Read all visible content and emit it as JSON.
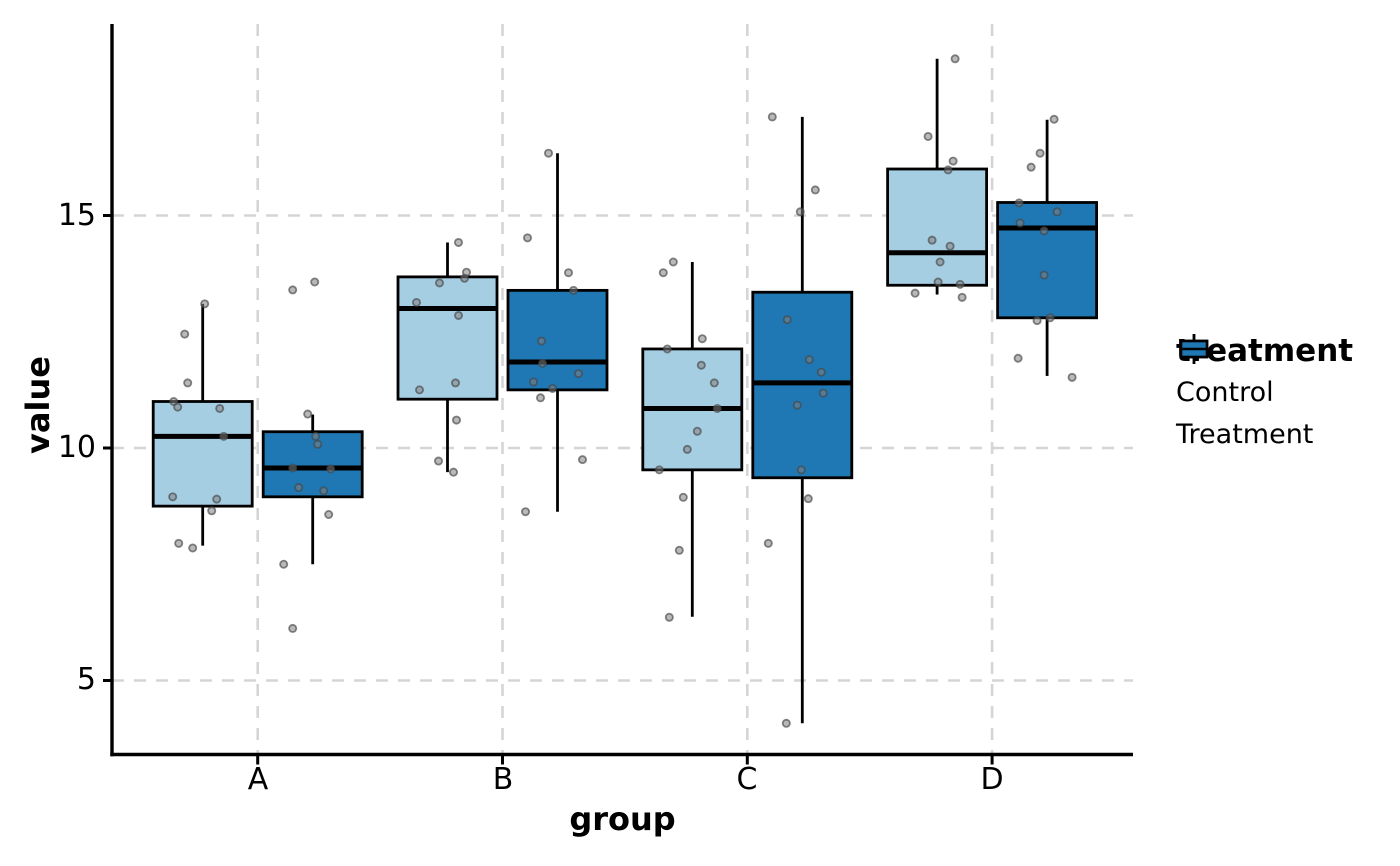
{
  "chart_data": {
    "type": "box",
    "title": "",
    "xlabel": "group",
    "ylabel": "value",
    "categories": [
      "A",
      "B",
      "C",
      "D"
    ],
    "y_ticks": [
      5,
      10,
      15
    ],
    "y_tick_labels": [
      "5",
      "10",
      "15"
    ],
    "ylim": [
      3.4,
      19.1
    ],
    "grid": "dashed",
    "grid_color": "#d5d5d5",
    "point_color": "#808080",
    "point_stroke_color": "#454545",
    "legend": {
      "title": "treatment",
      "position": "right",
      "entries": [
        {
          "label": "Control",
          "color": "#A6CEE3"
        },
        {
          "label": "Treatment",
          "color": "#1F78B4"
        }
      ]
    },
    "series": [
      {
        "name": "Control",
        "color": "#A6CEE3",
        "boxes": [
          {
            "group": "A",
            "whisker_low": 7.9,
            "q1": 8.75,
            "median": 10.25,
            "q3": 11.0,
            "whisker_high": 13.1,
            "points": [
              [
                2,
                13.1
              ],
              [
                -18,
                12.45
              ],
              [
                -15,
                11.4
              ],
              [
                -29,
                11.0
              ],
              [
                -25,
                10.88
              ],
              [
                17,
                10.85
              ],
              [
                21,
                10.25
              ],
              [
                -30,
                8.95
              ],
              [
                14,
                8.9
              ],
              [
                9,
                8.65
              ],
              [
                -24,
                7.95
              ],
              [
                -10,
                7.85
              ]
            ]
          },
          {
            "group": "B",
            "whisker_low": 9.48,
            "q1": 11.05,
            "median": 13.0,
            "q3": 13.68,
            "whisker_high": 14.42,
            "points": [
              [
                11,
                14.42
              ],
              [
                19,
                13.78
              ],
              [
                17,
                13.65
              ],
              [
                -8,
                13.55
              ],
              [
                -31,
                13.13
              ],
              [
                11,
                12.85
              ],
              [
                8,
                11.4
              ],
              [
                -28,
                11.25
              ],
              [
                9,
                10.6
              ],
              [
                -9,
                9.72
              ],
              [
                6,
                9.48
              ]
            ]
          },
          {
            "group": "C",
            "whisker_low": 6.37,
            "q1": 9.53,
            "median": 10.85,
            "q3": 12.13,
            "whisker_high": 14.0,
            "points": [
              [
                -19,
                14.0
              ],
              [
                -29,
                13.77
              ],
              [
                10,
                12.35
              ],
              [
                -25,
                12.13
              ],
              [
                9,
                11.78
              ],
              [
                22,
                11.4
              ],
              [
                25,
                10.85
              ],
              [
                5,
                10.36
              ],
              [
                -5,
                9.97
              ],
              [
                -33,
                9.53
              ],
              [
                -9,
                8.94
              ],
              [
                -13,
                7.8
              ],
              [
                -23,
                6.36
              ]
            ]
          },
          {
            "group": "D",
            "whisker_low": 13.3,
            "q1": 13.5,
            "median": 14.2,
            "q3": 16.0,
            "whisker_high": 18.37,
            "points": [
              [
                18,
                18.37
              ],
              [
                -9,
                16.7
              ],
              [
                16,
                16.17
              ],
              [
                11,
                15.98
              ],
              [
                -5,
                14.47
              ],
              [
                13,
                14.34
              ],
              [
                3,
                14.0
              ],
              [
                1,
                13.57
              ],
              [
                23,
                13.52
              ],
              [
                -22,
                13.33
              ],
              [
                25,
                13.24
              ]
            ]
          }
        ]
      },
      {
        "name": "Treatment",
        "color": "#1F78B4",
        "boxes": [
          {
            "group": "A",
            "whisker_low": 7.5,
            "q1": 8.95,
            "median": 9.57,
            "q3": 10.35,
            "whisker_high": 10.72,
            "points": [
              [
                2,
                13.57
              ],
              [
                -20,
                13.4
              ],
              [
                -5,
                10.73
              ],
              [
                3,
                10.25
              ],
              [
                5,
                10.08
              ],
              [
                -20,
                9.57
              ],
              [
                18,
                9.55
              ],
              [
                -14,
                9.15
              ],
              [
                11,
                9.08
              ],
              [
                16,
                8.57
              ],
              [
                -29,
                7.5
              ],
              [
                -20,
                6.12
              ]
            ]
          },
          {
            "group": "B",
            "whisker_low": 8.63,
            "q1": 11.25,
            "median": 11.85,
            "q3": 13.39,
            "whisker_high": 16.34,
            "points": [
              [
                -9,
                16.34
              ],
              [
                -30,
                14.52
              ],
              [
                11,
                13.77
              ],
              [
                16,
                13.39
              ],
              [
                -16,
                12.3
              ],
              [
                -15,
                11.82
              ],
              [
                21,
                11.6
              ],
              [
                -24,
                11.42
              ],
              [
                -5,
                11.28
              ],
              [
                -17,
                11.08
              ],
              [
                25,
                9.75
              ],
              [
                -32,
                8.63
              ]
            ]
          },
          {
            "group": "C",
            "whisker_low": 4.08,
            "q1": 9.36,
            "median": 11.4,
            "q3": 13.35,
            "whisker_high": 17.12,
            "points": [
              [
                -30,
                17.12
              ],
              [
                13,
                15.55
              ],
              [
                -2,
                15.08
              ],
              [
                -15,
                12.76
              ],
              [
                7,
                11.9
              ],
              [
                19,
                11.63
              ],
              [
                21,
                11.18
              ],
              [
                -5,
                10.92
              ],
              [
                -1,
                9.53
              ],
              [
                6,
                8.91
              ],
              [
                -34,
                7.95
              ],
              [
                -16,
                4.08
              ]
            ]
          },
          {
            "group": "D",
            "whisker_low": 11.55,
            "q1": 12.8,
            "median": 14.73,
            "q3": 15.28,
            "whisker_high": 17.06,
            "points": [
              [
                7,
                17.07
              ],
              [
                -7,
                16.34
              ],
              [
                -16,
                16.04
              ],
              [
                -28,
                15.27
              ],
              [
                10,
                15.08
              ],
              [
                -27,
                14.84
              ],
              [
                -3,
                14.67
              ],
              [
                -3,
                13.72
              ],
              [
                3,
                12.8
              ],
              [
                -10,
                12.74
              ],
              [
                -29,
                11.93
              ],
              [
                25,
                11.52
              ]
            ]
          }
        ]
      }
    ]
  }
}
